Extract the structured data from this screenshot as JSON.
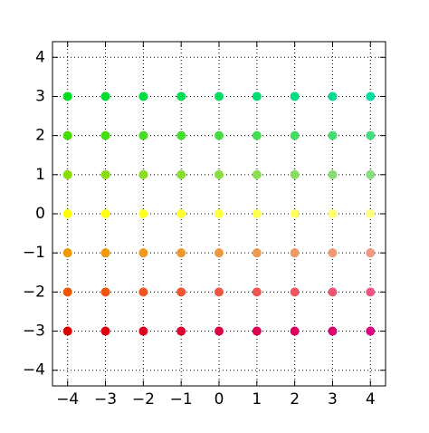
{
  "chart_data": {
    "type": "scatter",
    "x": [
      -4,
      -3,
      -2,
      -1,
      0,
      1,
      2,
      3,
      4
    ],
    "series": [
      {
        "y": 3,
        "colors": [
          "#00dd20",
          "#00dd30",
          "#00dd40",
          "#00dd50",
          "#00dd60",
          "#00dd70",
          "#00dd80",
          "#00dd90",
          "#00dda0"
        ]
      },
      {
        "y": 2,
        "colors": [
          "#44dd00",
          "#44dd10",
          "#44dd20",
          "#44dd30",
          "#44dd40",
          "#44dd50",
          "#44dd60",
          "#44dd70",
          "#44dd80"
        ]
      },
      {
        "y": 1,
        "colors": [
          "#88dd00",
          "#88dd10",
          "#88dd20",
          "#88dd30",
          "#88dd40",
          "#88dd50",
          "#88dd60",
          "#88dd70",
          "#88dd80"
        ]
      },
      {
        "y": 0,
        "colors": [
          "#ffff00",
          "#ffff10",
          "#ffff20",
          "#ffff30",
          "#ffff40",
          "#ffff50",
          "#ffff60",
          "#ffff70",
          "#ffff80"
        ]
      },
      {
        "y": -1,
        "colors": [
          "#ee9900",
          "#ee9910",
          "#ee9920",
          "#ee9930",
          "#ee9940",
          "#ee9950",
          "#ee9960",
          "#ee9970",
          "#ee9980"
        ]
      },
      {
        "y": -2,
        "colors": [
          "#ee5500",
          "#ee5510",
          "#ee5520",
          "#ee5530",
          "#ee5540",
          "#ee5550",
          "#ee5560",
          "#ee5570",
          "#ee5580"
        ]
      },
      {
        "y": -3,
        "colors": [
          "#dd0000",
          "#dd0010",
          "#dd0020",
          "#dd0030",
          "#dd0040",
          "#dd0050",
          "#dd0060",
          "#dd0070",
          "#dd0080"
        ]
      }
    ],
    "xlim": [
      -4.4,
      4.4
    ],
    "ylim": [
      -4.4,
      4.4
    ],
    "xticks": [
      {
        "value": -4,
        "label": "−4"
      },
      {
        "value": -3,
        "label": "−3"
      },
      {
        "value": -2,
        "label": "−2"
      },
      {
        "value": -1,
        "label": "−1"
      },
      0,
      1,
      2,
      3,
      4
    ],
    "yticks": [
      {
        "value": -4,
        "label": "−4"
      },
      {
        "value": -3,
        "label": "−3"
      },
      {
        "value": -2,
        "label": "−2"
      },
      {
        "value": -1,
        "label": "−1"
      },
      0,
      1,
      2,
      3,
      4
    ],
    "grid": true
  }
}
